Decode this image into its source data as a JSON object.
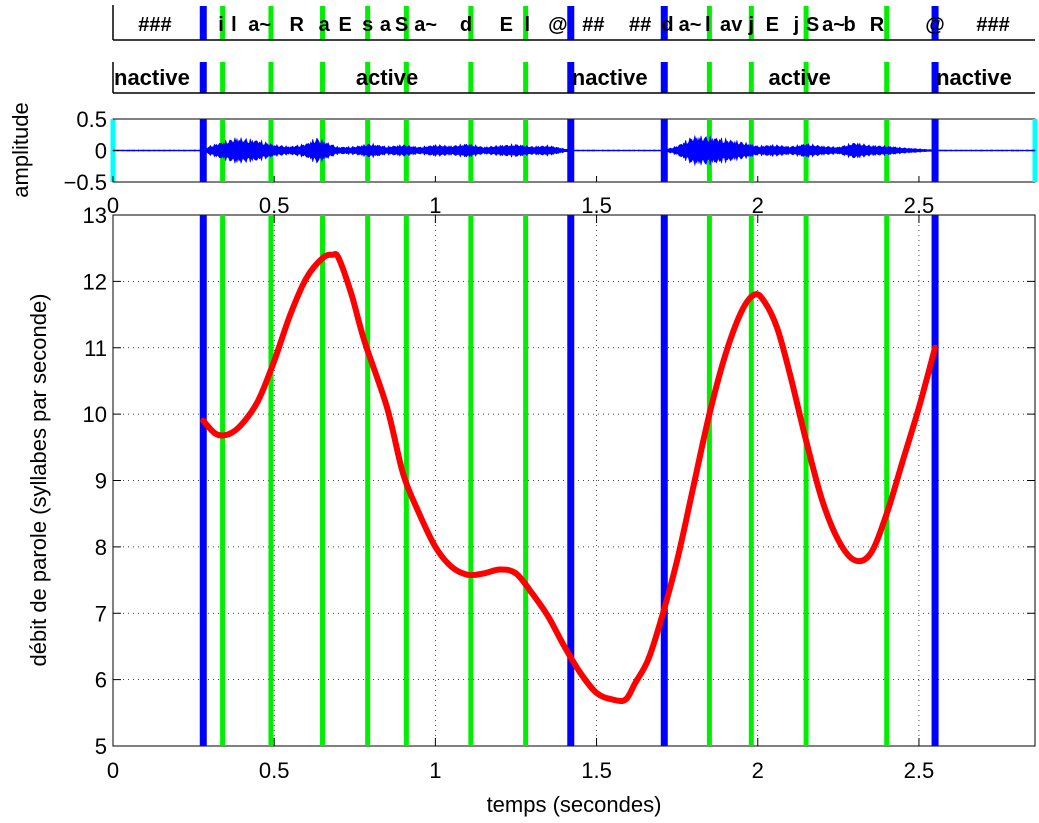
{
  "chart_data": [
    {
      "type": "table",
      "panel": "phonemes",
      "labels": [
        "###",
        "i",
        "l",
        "a~",
        "R",
        "a",
        "E",
        "s",
        "a",
        "S",
        "a~",
        "d",
        "E",
        "l",
        "@",
        "##",
        "##",
        "d",
        "a~",
        "l",
        "a",
        "v",
        "j",
        "E",
        "j",
        "S",
        "a~",
        "b",
        "R",
        "@",
        "###"
      ]
    },
    {
      "type": "table",
      "panel": "activity",
      "segments": [
        {
          "label": "nactive",
          "start": 0.0,
          "end": 0.28
        },
        {
          "label": "active",
          "start": 0.28,
          "end": 1.42
        },
        {
          "label": "nactive",
          "start": 1.42,
          "end": 1.71
        },
        {
          "label": "active",
          "start": 1.71,
          "end": 2.55
        },
        {
          "label": "nactive",
          "start": 2.55,
          "end": 2.86
        }
      ]
    },
    {
      "type": "line",
      "panel": "waveform",
      "ylabel": "amplitude",
      "xlim": [
        0,
        2.86
      ],
      "ylim": [
        -0.5,
        0.5
      ],
      "yticks": [
        "0.5",
        "0",
        "−0.5"
      ],
      "xticks": [
        "0",
        "0.5",
        "1",
        "1.5",
        "2",
        "2.5"
      ],
      "x": [
        0.0,
        0.28,
        0.3,
        0.38,
        0.45,
        0.5,
        0.55,
        0.6,
        0.63,
        0.66,
        0.7,
        0.75,
        0.8,
        0.85,
        0.9,
        0.95,
        1.0,
        1.05,
        1.1,
        1.15,
        1.2,
        1.25,
        1.3,
        1.35,
        1.42,
        1.71,
        1.75,
        1.8,
        1.85,
        1.9,
        1.95,
        2.0,
        2.05,
        2.1,
        2.15,
        2.2,
        2.25,
        2.3,
        2.35,
        2.4,
        2.45,
        2.55,
        2.86
      ],
      "envelope": [
        0.01,
        0.01,
        0.08,
        0.22,
        0.18,
        0.1,
        0.07,
        0.12,
        0.22,
        0.15,
        0.06,
        0.07,
        0.12,
        0.07,
        0.1,
        0.06,
        0.1,
        0.08,
        0.12,
        0.06,
        0.09,
        0.11,
        0.07,
        0.09,
        0.01,
        0.01,
        0.08,
        0.25,
        0.24,
        0.2,
        0.15,
        0.08,
        0.1,
        0.07,
        0.12,
        0.08,
        0.06,
        0.14,
        0.09,
        0.08,
        0.05,
        0.01,
        0.01
      ]
    },
    {
      "type": "line",
      "panel": "main",
      "xlabel": "temps (secondes)",
      "ylabel": "débit de parole (syllabes par seconde)",
      "xlim": [
        0,
        2.86
      ],
      "ylim": [
        5,
        13
      ],
      "xticks": [
        "0",
        "0.5",
        "1",
        "1.5",
        "2",
        "2.5"
      ],
      "yticks": [
        "5",
        "6",
        "7",
        "8",
        "9",
        "10",
        "11",
        "12",
        "13"
      ],
      "grid": true,
      "series": [
        {
          "color": "#ff0000",
          "x": [
            0.28,
            0.32,
            0.36,
            0.4,
            0.45,
            0.5,
            0.55,
            0.6,
            0.65,
            0.68,
            0.7,
            0.74,
            0.78,
            0.85,
            0.9,
            0.95,
            1.0,
            1.05,
            1.1,
            1.15,
            1.2,
            1.25,
            1.3,
            1.35,
            1.4,
            1.45,
            1.5,
            1.55,
            1.59,
            1.62,
            1.66,
            1.7,
            1.75,
            1.8,
            1.85,
            1.9,
            1.95,
            1.99,
            2.02,
            2.06,
            2.1,
            2.15,
            2.2,
            2.25,
            2.3,
            2.35,
            2.4,
            2.45,
            2.5,
            2.55
          ],
          "values": [
            9.9,
            9.7,
            9.7,
            9.85,
            10.2,
            10.8,
            11.5,
            12.05,
            12.35,
            12.4,
            12.35,
            11.8,
            11.1,
            10.1,
            9.1,
            8.5,
            8.0,
            7.7,
            7.58,
            7.6,
            7.66,
            7.6,
            7.3,
            6.95,
            6.5,
            6.1,
            5.8,
            5.7,
            5.7,
            5.95,
            6.3,
            6.9,
            7.8,
            8.9,
            10.0,
            10.9,
            11.55,
            11.8,
            11.7,
            11.3,
            10.6,
            9.6,
            8.7,
            8.1,
            7.8,
            7.9,
            8.5,
            9.3,
            10.1,
            11.0
          ]
        }
      ],
      "markers": {
        "blue": [
          0.28,
          1.42,
          1.71,
          2.55
        ],
        "green": [
          0.34,
          0.49,
          0.65,
          0.79,
          0.91,
          1.11,
          1.28,
          1.85,
          1.98,
          2.15,
          2.4
        ],
        "cyan": [
          0.0,
          2.86
        ]
      }
    }
  ],
  "colors": {
    "waveform": "#0000ff",
    "pause_marker": "#0000ff",
    "syllable_marker": "#00ee00",
    "edge_marker": "#00ffff",
    "rate_curve": "#ff0000"
  }
}
